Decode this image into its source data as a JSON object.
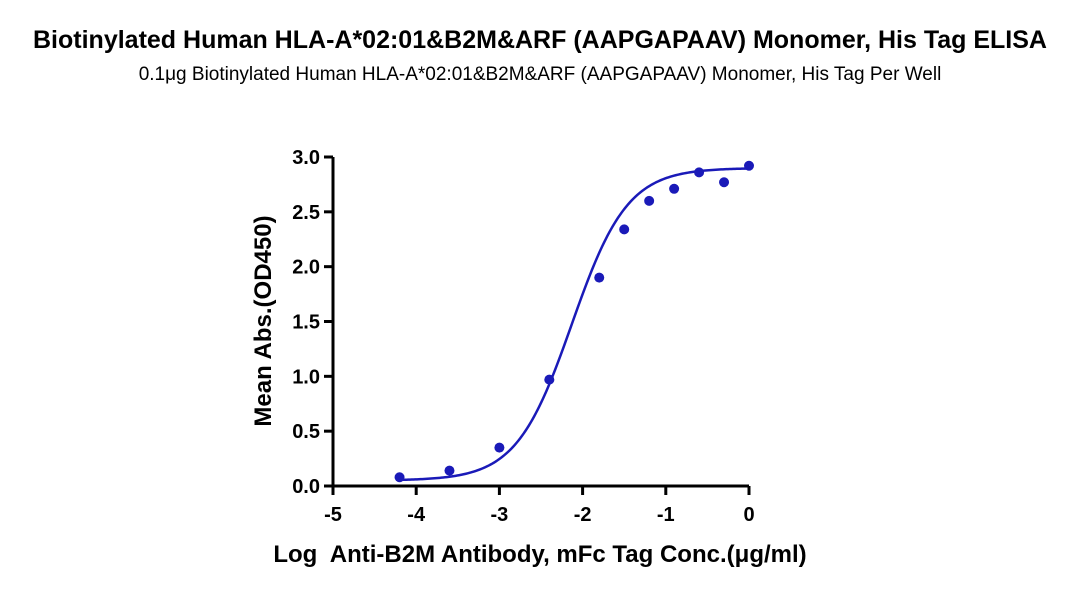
{
  "chart_data": {
    "type": "scatter",
    "title": "Biotinylated Human HLA-A*02:01&B2M&ARF (AAPGAPAAV) Monomer, His Tag ELISA",
    "subtitle": "0.1μg Biotinylated Human HLA-A*02:01&B2M&ARF (AAPGAPAAV) Monomer, His Tag Per Well",
    "xlabel": "Log  Anti-B2M Antibody, mFc Tag Conc.(μg/ml)",
    "ylabel": "Mean Abs.(OD450)",
    "xlim": [
      -5,
      0
    ],
    "ylim": [
      0,
      3.0
    ],
    "x_ticks": [
      "-5",
      "-4",
      "-3",
      "-2",
      "-1",
      "0"
    ],
    "y_ticks": [
      "0.0",
      "0.5",
      "1.0",
      "1.5",
      "2.0",
      "2.5",
      "3.0"
    ],
    "grid": false,
    "series_color": "#1a1ab8",
    "points": [
      {
        "x": -4.2,
        "y": 0.08
      },
      {
        "x": -3.6,
        "y": 0.14
      },
      {
        "x": -3.0,
        "y": 0.35
      },
      {
        "x": -2.4,
        "y": 0.97
      },
      {
        "x": -1.8,
        "y": 1.9
      },
      {
        "x": -1.5,
        "y": 2.34
      },
      {
        "x": -1.2,
        "y": 2.6
      },
      {
        "x": -0.9,
        "y": 2.71
      },
      {
        "x": -0.6,
        "y": 2.86
      },
      {
        "x": -0.3,
        "y": 2.77
      },
      {
        "x": 0.0,
        "y": 2.92
      }
    ],
    "fit": {
      "model": "4PL",
      "bottom": 0.05,
      "top": 2.9,
      "log_ec50": -2.13,
      "hill": 1.3
    }
  }
}
